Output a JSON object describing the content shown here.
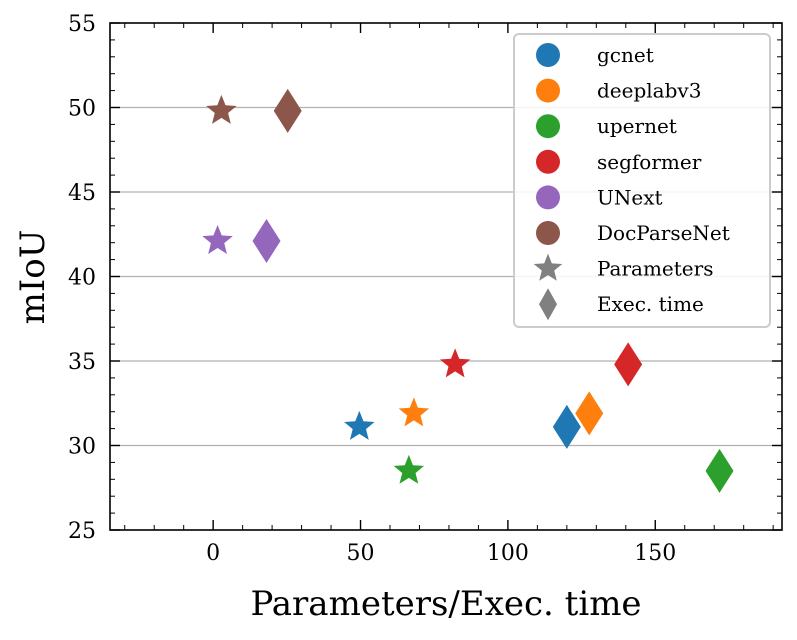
{
  "chart_data": {
    "type": "scatter",
    "title": "",
    "xlabel": "Parameters/Exec. time",
    "ylabel": "mIoU",
    "xlim": [
      -35,
      193
    ],
    "ylim": [
      25,
      55
    ],
    "xticks": [
      0,
      50,
      100,
      150
    ],
    "yticks": [
      25,
      30,
      35,
      40,
      45,
      50,
      55
    ],
    "grid": "horizontal",
    "legend_position": "top-right",
    "legend": [
      {
        "label": "gcnet",
        "marker": "circle",
        "color": "#1f77b4"
      },
      {
        "label": "deeplabv3",
        "marker": "circle",
        "color": "#ff7f0e"
      },
      {
        "label": "upernet",
        "marker": "circle",
        "color": "#2ca02c"
      },
      {
        "label": "segformer",
        "marker": "circle",
        "color": "#d62728"
      },
      {
        "label": "UNext",
        "marker": "circle",
        "color": "#9467bd"
      },
      {
        "label": "DocParseNet",
        "marker": "circle",
        "color": "#8c564b"
      },
      {
        "label": "Parameters",
        "marker": "star",
        "color": "#808080"
      },
      {
        "label": "Exec. time",
        "marker": "diamond",
        "color": "#808080"
      }
    ],
    "series": [
      {
        "name": "gcnet",
        "color": "#1f77b4",
        "parameters": {
          "x": 49.6,
          "y": 31.1
        },
        "exec_time": {
          "x": 120.0,
          "y": 31.1
        }
      },
      {
        "name": "deeplabv3",
        "color": "#ff7f0e",
        "parameters": {
          "x": 68.1,
          "y": 31.9
        },
        "exec_time": {
          "x": 127.6,
          "y": 31.9
        }
      },
      {
        "name": "upernet",
        "color": "#2ca02c",
        "parameters": {
          "x": 66.4,
          "y": 28.5
        },
        "exec_time": {
          "x": 171.8,
          "y": 28.5
        }
      },
      {
        "name": "segformer",
        "color": "#d62728",
        "parameters": {
          "x": 82.1,
          "y": 34.8
        },
        "exec_time": {
          "x": 140.8,
          "y": 34.8
        }
      },
      {
        "name": "UNext",
        "color": "#9467bd",
        "parameters": {
          "x": 1.5,
          "y": 42.1
        },
        "exec_time": {
          "x": 18.1,
          "y": 42.1
        }
      },
      {
        "name": "DocParseNet",
        "color": "#8c564b",
        "parameters": {
          "x": 2.8,
          "y": 49.8
        },
        "exec_time": {
          "x": 25.3,
          "y": 49.8
        }
      }
    ]
  }
}
